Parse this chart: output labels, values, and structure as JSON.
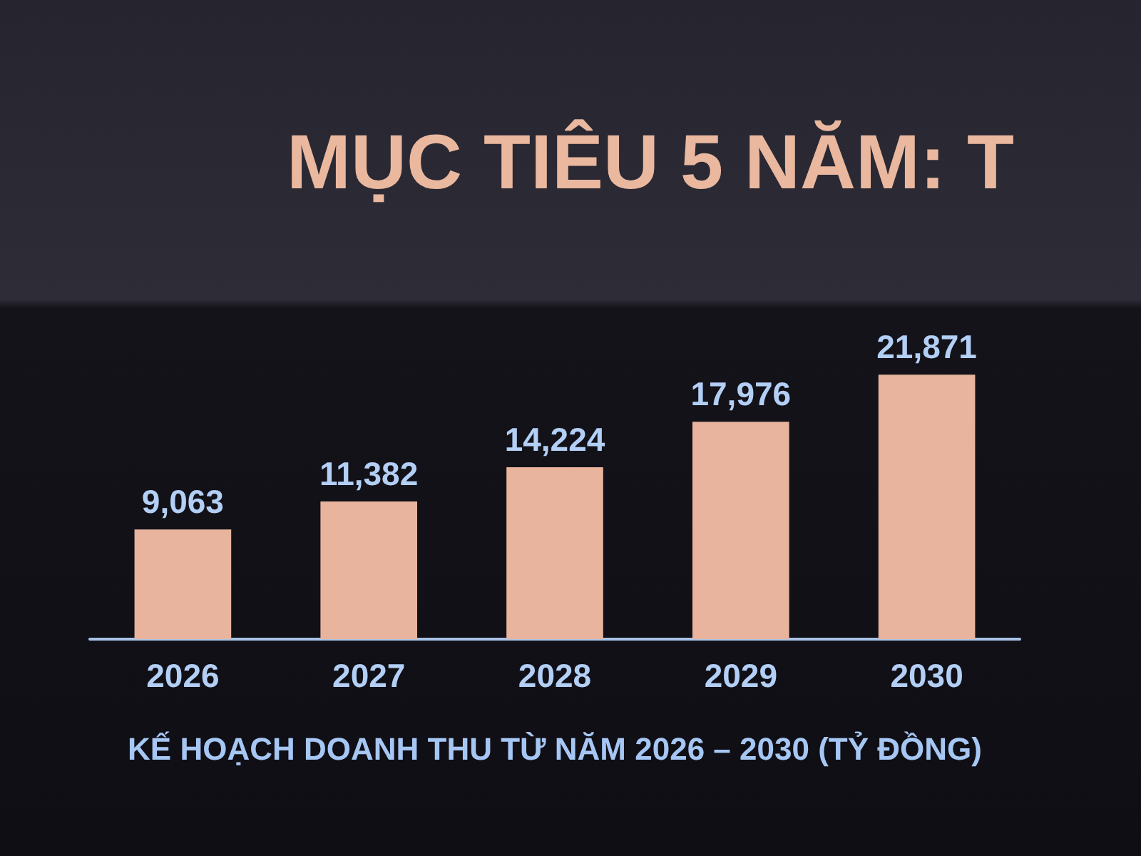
{
  "chart_data": {
    "type": "bar",
    "title": "MỤC TIÊU 5 NĂM: T",
    "xlabel": "KẾ HOẠCH DOANH THU TỪ NĂM 2026 – 2030 (TỶ ĐỒNG)",
    "categories": [
      "2026",
      "2027",
      "2028",
      "2029",
      "2030"
    ],
    "values": [
      9063,
      11382,
      14224,
      17976,
      21871
    ],
    "color": "#e8b49e",
    "value_labels": [
      "9,063",
      "11,382",
      "14,224",
      "17,976",
      "21,871"
    ],
    "tick_labels": "x"
  }
}
